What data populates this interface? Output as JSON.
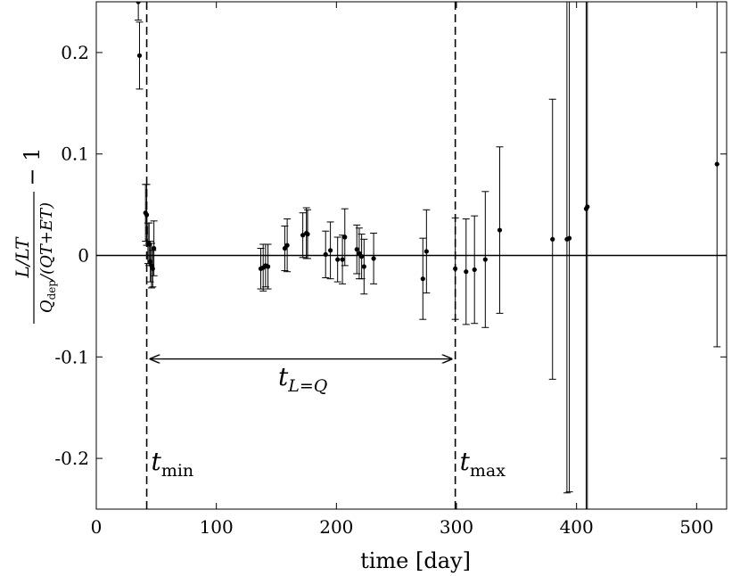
{
  "chart_data": {
    "type": "scatter",
    "xlabel": "time [day]",
    "ylabel": "L/LT / Q_dep/(QT+ET) − 1",
    "xlim": [
      0,
      525
    ],
    "ylim": [
      -0.25,
      0.25
    ],
    "xticks": [
      0,
      100,
      200,
      300,
      400,
      500
    ],
    "yticks": [
      -0.2,
      -0.1,
      0,
      0.1,
      0.2
    ],
    "xtick_labels": [
      "0",
      "100",
      "200",
      "300",
      "400",
      "500"
    ],
    "ytick_labels": [
      "-0.2",
      "-0.1",
      "0",
      "0.1",
      "0.2"
    ],
    "grid": false,
    "reference_lines": [
      {
        "orientation": "horizontal",
        "value": 0,
        "style": "solid"
      },
      {
        "orientation": "vertical",
        "value": 42,
        "style": "dashed",
        "label": "t_min"
      },
      {
        "orientation": "vertical",
        "value": 299,
        "style": "dashed",
        "label": "t_max"
      }
    ],
    "annotations": [
      {
        "text": "t_{L=Q}",
        "type": "double-arrow",
        "x_from": 42,
        "x_to": 299,
        "y": -0.102
      }
    ],
    "points": [
      {
        "x": 35,
        "y": 0.25,
        "err": 0.018
      },
      {
        "x": 36,
        "y": 0.197,
        "err": 0.033
      },
      {
        "x": 41,
        "y": 0.042,
        "err": 0.028
      },
      {
        "x": 42,
        "y": 0.04,
        "err": 0.03
      },
      {
        "x": 43,
        "y": 0.012,
        "err": 0.02
      },
      {
        "x": 44,
        "y": 0.011,
        "err": 0.021
      },
      {
        "x": 45,
        "y": -0.006,
        "err": 0.02
      },
      {
        "x": 46,
        "y": -0.01,
        "err": 0.022
      },
      {
        "x": 47,
        "y": -0.013,
        "err": 0.018
      },
      {
        "x": 48,
        "y": 0.007,
        "err": 0.027
      },
      {
        "x": 137,
        "y": -0.013,
        "err": 0.02
      },
      {
        "x": 139,
        "y": -0.012,
        "err": 0.023
      },
      {
        "x": 141,
        "y": -0.01,
        "err": 0.021
      },
      {
        "x": 143,
        "y": -0.011,
        "err": 0.022
      },
      {
        "x": 157,
        "y": 0.007,
        "err": 0.022
      },
      {
        "x": 159,
        "y": 0.01,
        "err": 0.026
      },
      {
        "x": 172,
        "y": 0.02,
        "err": 0.022
      },
      {
        "x": 175,
        "y": 0.022,
        "err": 0.025
      },
      {
        "x": 176,
        "y": 0.021,
        "err": 0.024
      },
      {
        "x": 191,
        "y": 0.001,
        "err": 0.023
      },
      {
        "x": 195,
        "y": 0.005,
        "err": 0.028
      },
      {
        "x": 201,
        "y": -0.004,
        "err": 0.022
      },
      {
        "x": 205,
        "y": -0.004,
        "err": 0.024
      },
      {
        "x": 207,
        "y": 0.018,
        "err": 0.028
      },
      {
        "x": 217,
        "y": 0.006,
        "err": 0.024
      },
      {
        "x": 219,
        "y": 0.002,
        "err": 0.025
      },
      {
        "x": 221,
        "y": -0.001,
        "err": 0.022
      },
      {
        "x": 223,
        "y": -0.011,
        "err": 0.027
      },
      {
        "x": 231,
        "y": -0.003,
        "err": 0.025
      },
      {
        "x": 272,
        "y": -0.023,
        "err": 0.04
      },
      {
        "x": 275,
        "y": 0.004,
        "err": 0.041
      },
      {
        "x": 299,
        "y": -0.013,
        "err": 0.05
      },
      {
        "x": 308,
        "y": -0.016,
        "err": 0.052
      },
      {
        "x": 315,
        "y": -0.014,
        "err": 0.053
      },
      {
        "x": 324,
        "y": -0.004,
        "err": 0.067
      },
      {
        "x": 336,
        "y": 0.025,
        "err": 0.082
      },
      {
        "x": 380,
        "y": 0.016,
        "err": 0.138
      },
      {
        "x": 392,
        "y": 0.016,
        "err": 0.25
      },
      {
        "x": 394,
        "y": 0.017,
        "err": 0.25
      },
      {
        "x": 408,
        "y": 0.046,
        "err": 0.3
      },
      {
        "x": 409,
        "y": 0.048,
        "err": 0.3
      },
      {
        "x": 517,
        "y": 0.09,
        "err": 0.18
      }
    ]
  }
}
